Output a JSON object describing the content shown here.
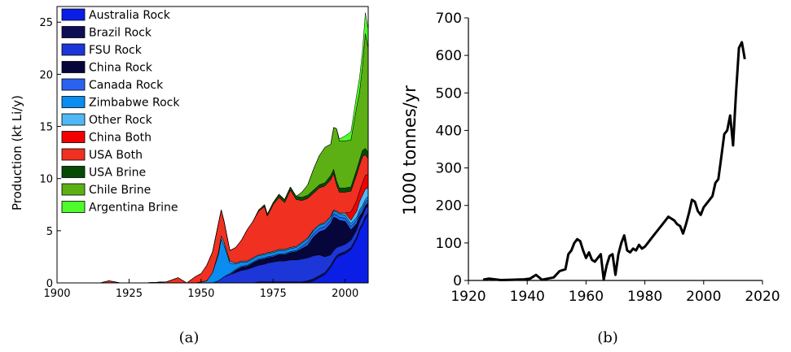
{
  "chart_data": [
    {
      "type": "area",
      "stacked": true,
      "xlabel": "",
      "ylabel": "Production (kt Li/y)",
      "xlim": [
        1900,
        2008
      ],
      "ylim": [
        0,
        26.5
      ],
      "xticks": [
        1900,
        1925,
        1950,
        1975,
        2000
      ],
      "yticks": [
        0,
        5,
        10,
        15,
        20,
        25
      ],
      "legend": "top-left",
      "caption": "(a)",
      "x": [
        1900,
        1915,
        1918,
        1922,
        1930,
        1938,
        1942,
        1945,
        1948,
        1950,
        1952,
        1954,
        1956,
        1957,
        1958,
        1960,
        1962,
        1964,
        1966,
        1968,
        1970,
        1972,
        1973,
        1975,
        1977,
        1979,
        1981,
        1983,
        1985,
        1987,
        1989,
        1991,
        1993,
        1995,
        1996,
        1997,
        1998,
        2000,
        2002,
        2004,
        2005,
        2006,
        2007,
        2008
      ],
      "series": [
        {
          "name": "Australia Rock",
          "color": "#0a1ee6",
          "values": [
            0,
            0,
            0,
            0,
            0,
            0,
            0,
            0,
            0,
            0,
            0,
            0,
            0,
            0,
            0,
            0,
            0,
            0,
            0,
            0,
            0,
            0,
            0,
            0,
            0,
            0,
            0,
            0,
            0,
            0,
            0.2,
            0.5,
            0.8,
            1.5,
            2.0,
            2.4,
            2.6,
            2.8,
            3.2,
            4.2,
            5.0,
            5.5,
            6.2,
            6.5
          ]
        },
        {
          "name": "Brazil Rock",
          "color": "#0c0f54",
          "values": [
            0,
            0,
            0,
            0,
            0,
            0,
            0,
            0,
            0,
            0,
            0,
            0,
            0,
            0,
            0,
            0,
            0,
            0,
            0,
            0,
            0.1,
            0.1,
            0.1,
            0.1,
            0.1,
            0.1,
            0.1,
            0.1,
            0.1,
            0.2,
            0.2,
            0.2,
            0.2,
            0.2,
            0.2,
            0.2,
            0.2,
            0.2,
            0.2,
            0.2,
            0.2,
            0.2,
            0.2,
            0.2
          ]
        },
        {
          "name": "FSU Rock",
          "color": "#1c36d8",
          "values": [
            0,
            0,
            0,
            0,
            0,
            0,
            0,
            0,
            0,
            0,
            0,
            0,
            0.2,
            0.4,
            0.6,
            0.8,
            1.0,
            1.2,
            1.3,
            1.5,
            1.6,
            1.7,
            1.8,
            1.9,
            2.0,
            2.0,
            2.1,
            2.1,
            2.2,
            2.2,
            2.2,
            2.0,
            1.5,
            1.0,
            0.9,
            0.8,
            0.7,
            0.7,
            0.7,
            0.7,
            0.7,
            0.7,
            0.7,
            0.7
          ]
        },
        {
          "name": "China Rock",
          "color": "#06063a",
          "values": [
            0,
            0,
            0,
            0,
            0,
            0,
            0,
            0,
            0,
            0,
            0,
            0,
            0,
            0,
            0,
            0,
            0.2,
            0.3,
            0.3,
            0.4,
            0.5,
            0.5,
            0.5,
            0.5,
            0.6,
            0.6,
            0.7,
            0.8,
            1.0,
            1.2,
            1.8,
            2.2,
            2.6,
            3.0,
            3.2,
            2.8,
            2.5,
            2.2,
            1.0,
            0.6,
            0.5,
            0.4,
            0.3,
            0.3
          ]
        },
        {
          "name": "Canada Rock",
          "color": "#2a62f0",
          "values": [
            0,
            0,
            0,
            0,
            0,
            0,
            0,
            0,
            0,
            0,
            0,
            0,
            0,
            0,
            0,
            0.1,
            0.1,
            0.1,
            0.1,
            0.1,
            0.1,
            0.1,
            0.1,
            0.1,
            0.1,
            0.1,
            0.1,
            0.1,
            0.2,
            0.3,
            0.3,
            0.3,
            0.3,
            0.3,
            0.3,
            0.3,
            0.3,
            0.3,
            0.3,
            0.3,
            0.3,
            0.3,
            0.3,
            0.3
          ]
        },
        {
          "name": "Zimbabwe Rock",
          "color": "#0a8cf0",
          "values": [
            0,
            0,
            0,
            0,
            0,
            0,
            0,
            0,
            0,
            0.1,
            0.2,
            1.0,
            2.5,
            3.8,
            3.0,
            1.0,
            0.5,
            0.4,
            0.3,
            0.3,
            0.3,
            0.3,
            0.3,
            0.3,
            0.3,
            0.3,
            0.3,
            0.3,
            0.3,
            0.3,
            0.3,
            0.3,
            0.3,
            0.3,
            0.3,
            0.3,
            0.3,
            0.3,
            0.3,
            0.3,
            0.3,
            0.3,
            0.3,
            0.3
          ]
        },
        {
          "name": "Other Rock",
          "color": "#50b8f5",
          "values": [
            0,
            0,
            0,
            0,
            0,
            0,
            0,
            0,
            0,
            0,
            0,
            0,
            0.2,
            0.3,
            0.3,
            0.2,
            0.1,
            0.1,
            0.1,
            0.1,
            0.1,
            0.1,
            0.1,
            0.1,
            0.1,
            0.1,
            0.1,
            0.1,
            0.1,
            0.1,
            0.1,
            0.1,
            0.1,
            0.1,
            0.1,
            0.1,
            0.1,
            0.2,
            0.3,
            0.6,
            0.8,
            1.0,
            1.0,
            0.8
          ]
        },
        {
          "name": "China Both",
          "color": "#f20000",
          "values": [
            0,
            0,
            0,
            0,
            0,
            0,
            0,
            0,
            0,
            0,
            0,
            0,
            0,
            0,
            0,
            0,
            0,
            0,
            0,
            0,
            0,
            0,
            0,
            0,
            0,
            0,
            0,
            0,
            0,
            0,
            0,
            0,
            0,
            0,
            0,
            0,
            0,
            0,
            0.8,
            1.0,
            1.0,
            1.2,
            1.3,
            1.3
          ]
        },
        {
          "name": "USA Both",
          "color": "#f03020",
          "values": [
            0,
            0,
            0.2,
            0,
            0,
            0.1,
            0.5,
            0,
            0.6,
            0.8,
            1.5,
            2.0,
            2.8,
            2.5,
            2.0,
            1.0,
            1.5,
            2.0,
            3.0,
            3.5,
            4.2,
            4.5,
            3.5,
            4.5,
            5.0,
            4.5,
            5.5,
            4.5,
            4.0,
            3.8,
            3.5,
            3.5,
            3.5,
            3.5,
            3.5,
            2.5,
            2.0,
            2.0,
            2.0,
            2.5,
            2.5,
            2.5,
            2.0,
            1.5
          ]
        },
        {
          "name": "USA Brine",
          "color": "#064a06",
          "values": [
            0,
            0,
            0,
            0,
            0,
            0,
            0,
            0,
            0,
            0,
            0,
            0,
            0,
            0,
            0,
            0,
            0,
            0,
            0,
            0,
            0.1,
            0.2,
            0.2,
            0.2,
            0.3,
            0.3,
            0.3,
            0.3,
            0.3,
            0.3,
            0.3,
            0.3,
            0.3,
            0.4,
            0.4,
            0.4,
            0.4,
            0.4,
            0.4,
            0.5,
            0.5,
            0.6,
            0.6,
            0.6
          ]
        },
        {
          "name": "Chile Brine",
          "color": "#5cb014",
          "values": [
            0,
            0,
            0,
            0,
            0,
            0,
            0,
            0,
            0,
            0,
            0,
            0,
            0,
            0,
            0,
            0,
            0,
            0,
            0,
            0,
            0,
            0,
            0,
            0,
            0,
            0,
            0,
            0,
            0.5,
            1.0,
            2.0,
            2.8,
            3.4,
            3.0,
            4.0,
            5.0,
            4.5,
            4.5,
            4.5,
            6.0,
            6.5,
            8.0,
            11.0,
            10.0
          ]
        },
        {
          "name": "Argentina Brine",
          "color": "#4dfc2a",
          "values": [
            0,
            0,
            0,
            0,
            0,
            0,
            0,
            0,
            0,
            0,
            0,
            0,
            0,
            0,
            0,
            0,
            0,
            0,
            0,
            0,
            0,
            0,
            0,
            0,
            0,
            0,
            0,
            0,
            0,
            0,
            0,
            0,
            0,
            0,
            0,
            0,
            0.2,
            0.5,
            0.8,
            1.2,
            1.4,
            1.5,
            2.0,
            1.8
          ]
        }
      ]
    },
    {
      "type": "line",
      "xlabel": "",
      "ylabel": "1000 tonnes/yr",
      "xlim": [
        1920,
        2020
      ],
      "ylim": [
        0,
        700
      ],
      "xticks": [
        1920,
        1940,
        1960,
        1980,
        2000,
        2020
      ],
      "yticks": [
        0,
        100,
        200,
        300,
        400,
        500,
        600,
        700
      ],
      "caption": "(b)",
      "color": "#000000",
      "x": [
        1925,
        1927,
        1929,
        1931,
        1935,
        1939,
        1941,
        1943,
        1945,
        1947,
        1949,
        1951,
        1953,
        1954,
        1955,
        1956,
        1957,
        1958,
        1959,
        1960,
        1961,
        1962,
        1963,
        1964,
        1965,
        1966,
        1967,
        1968,
        1969,
        1970,
        1971,
        1972,
        1973,
        1974,
        1975,
        1976,
        1977,
        1978,
        1979,
        1980,
        1981,
        1982,
        1983,
        1984,
        1986,
        1988,
        1989,
        1990,
        1991,
        1992,
        1993,
        1994,
        1995,
        1996,
        1997,
        1998,
        1999,
        2000,
        2001,
        2002,
        2003,
        2004,
        2005,
        2006,
        2007,
        2008,
        2009,
        2010,
        2011,
        2012,
        2013,
        2014
      ],
      "y": [
        2,
        5,
        3,
        1,
        2,
        3,
        5,
        15,
        2,
        5,
        8,
        25,
        30,
        70,
        80,
        100,
        110,
        105,
        80,
        60,
        75,
        55,
        50,
        60,
        70,
        2,
        40,
        65,
        70,
        15,
        70,
        100,
        120,
        80,
        75,
        85,
        80,
        95,
        85,
        90,
        100,
        110,
        120,
        130,
        150,
        170,
        165,
        160,
        150,
        145,
        125,
        150,
        180,
        215,
        210,
        185,
        175,
        195,
        205,
        215,
        225,
        260,
        270,
        330,
        390,
        400,
        440,
        360,
        500,
        620,
        635,
        590
      ]
    }
  ]
}
